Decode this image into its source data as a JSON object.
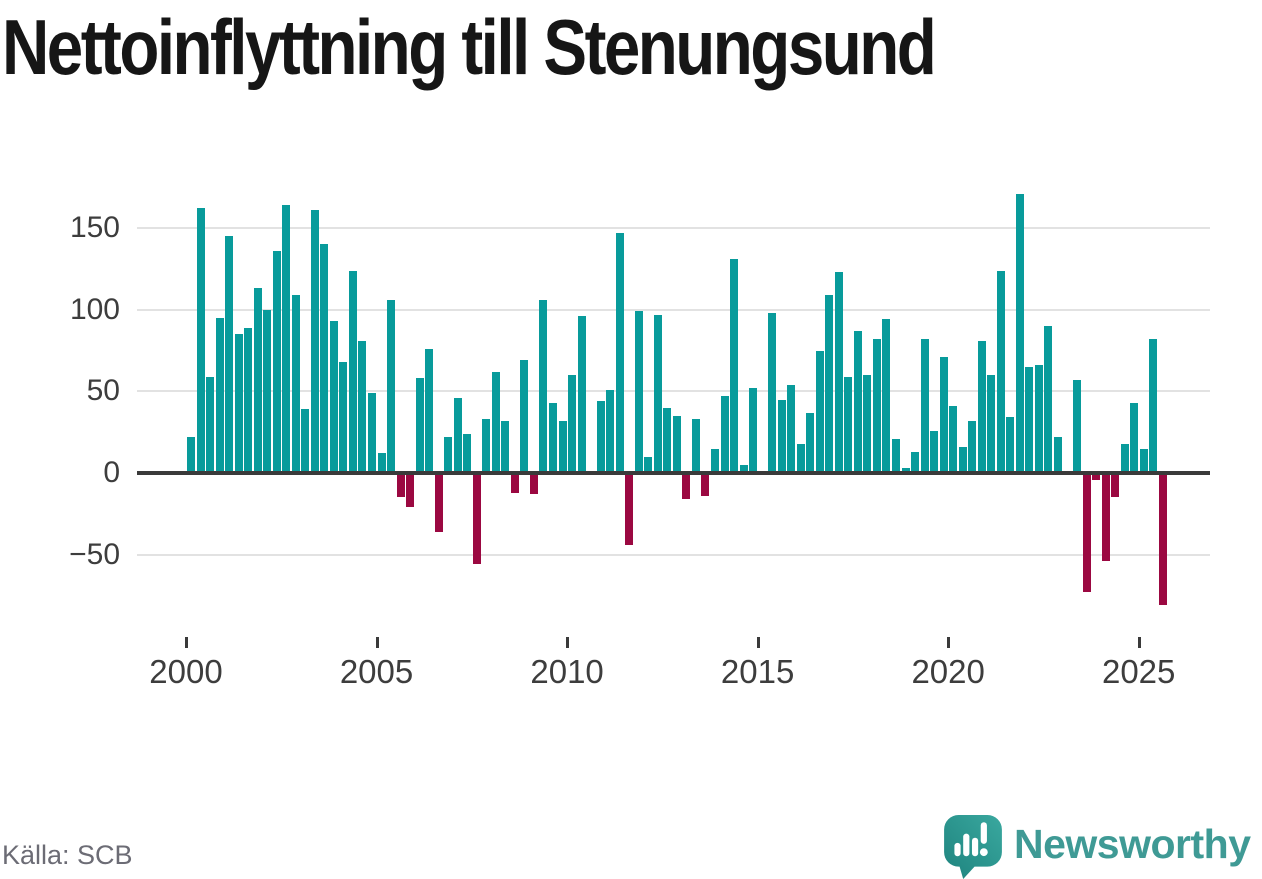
{
  "title": "Nettoinflyttning till Stenungsund",
  "source": "Källa: SCB",
  "brand": {
    "name": "Newsworthy",
    "color": "#3f9a95",
    "icon": "newsworthy-speech-bubble-bar-chart"
  },
  "chart_data": {
    "type": "bar",
    "title": "Nettoinflyttning till Stenungsund",
    "frequency": "quarterly",
    "x_start": "2000Q1",
    "x_end": "2025Q3",
    "x_tick_years": [
      2000,
      2005,
      2010,
      2015,
      2020,
      2025
    ],
    "y_ticks": [
      {
        "value": 150,
        "label": "150"
      },
      {
        "value": 100,
        "label": "100"
      },
      {
        "value": 50,
        "label": "50"
      },
      {
        "value": 0,
        "label": "0"
      },
      {
        "value": -50,
        "label": "−50"
      }
    ],
    "ylim": [
      -90,
      180
    ],
    "grid": true,
    "legend": "none",
    "colors": {
      "positive": "#089b9b",
      "negative": "#9b0841",
      "gridline": "#e2e2e2",
      "axis": "#3a3a3a",
      "tick_text": "#3d3d3d"
    },
    "values": [
      22,
      162,
      59,
      95,
      145,
      85,
      89,
      113,
      100,
      136,
      164,
      109,
      39,
      161,
      140,
      93,
      68,
      124,
      81,
      49,
      12,
      106,
      -15,
      -21,
      58,
      76,
      -36,
      22,
      46,
      24,
      -56,
      33,
      62,
      32,
      -12,
      69,
      -13,
      106,
      43,
      32,
      60,
      96,
      0,
      44,
      51,
      147,
      -44,
      99,
      10,
      97,
      40,
      35,
      -16,
      33,
      -14,
      15,
      47,
      131,
      5,
      52,
      0,
      98,
      45,
      54,
      18,
      37,
      75,
      109,
      123,
      59,
      87,
      60,
      82,
      94,
      21,
      3,
      13,
      82,
      26,
      71,
      41,
      16,
      32,
      81,
      60,
      124,
      34,
      171,
      65,
      66,
      90,
      22,
      0,
      57,
      -73,
      -4,
      -54,
      -15,
      18,
      43,
      15,
      82,
      -81
    ]
  }
}
